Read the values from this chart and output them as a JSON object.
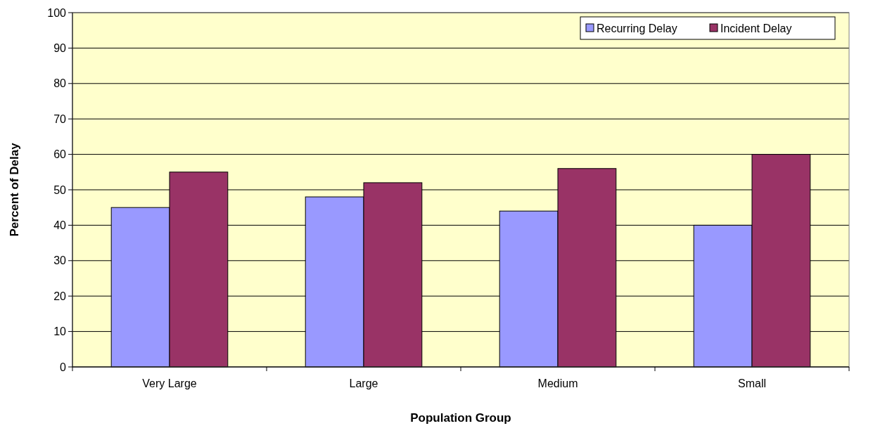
{
  "chart_data": {
    "type": "bar",
    "xlabel": "Population Group",
    "ylabel": "Percent of Delay",
    "categories": [
      "Very Large",
      "Large",
      "Medium",
      "Small"
    ],
    "series": [
      {
        "name": "Recurring Delay",
        "color": "#9999ff",
        "values": [
          45,
          48,
          44,
          40
        ]
      },
      {
        "name": "Incident Delay",
        "color": "#993366",
        "values": [
          55,
          52,
          56,
          60
        ]
      }
    ],
    "ylim": [
      0,
      100
    ],
    "yticks": [
      0,
      10,
      20,
      30,
      40,
      50,
      60,
      70,
      80,
      90,
      100
    ],
    "grid": "y",
    "legend": "top right"
  }
}
